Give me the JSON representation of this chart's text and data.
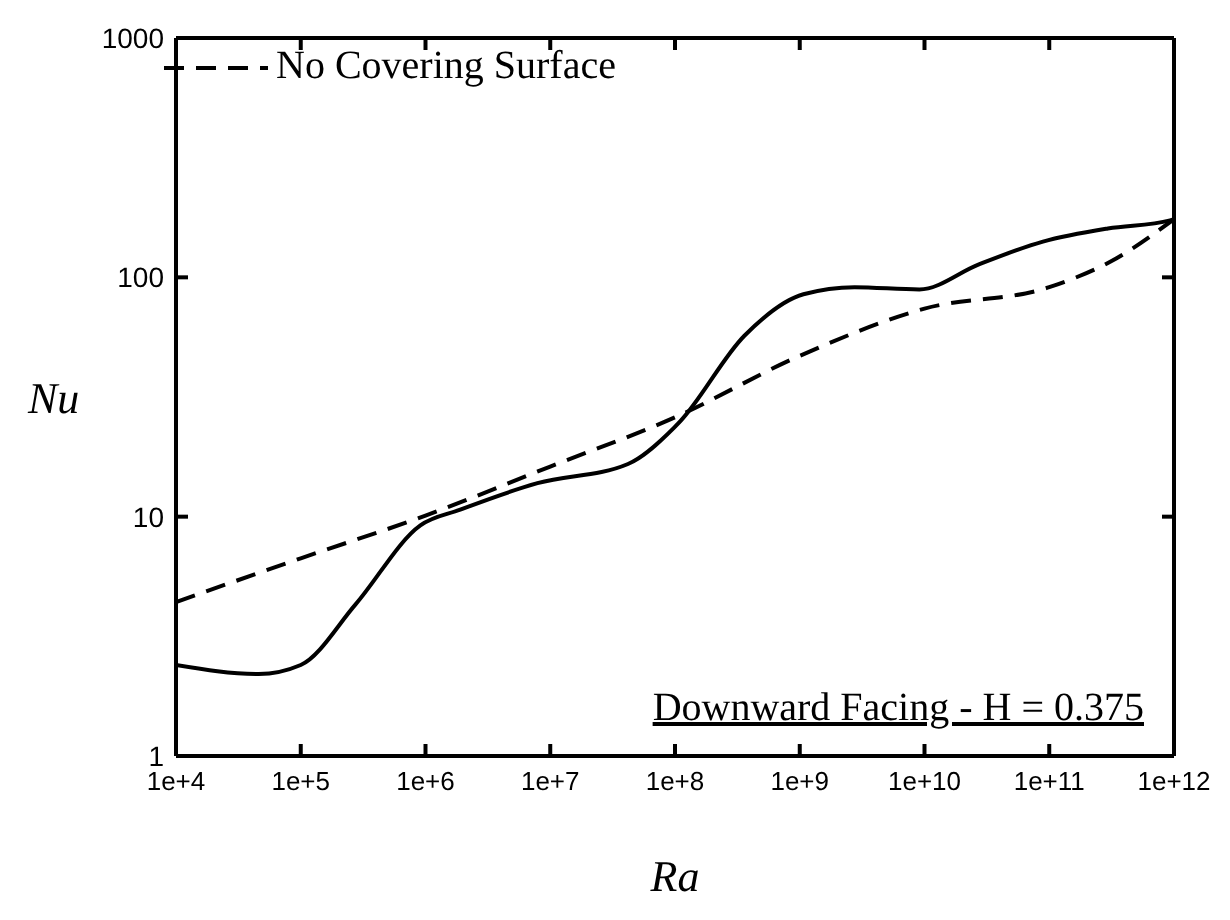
{
  "chart_data": {
    "type": "line",
    "xlabel": "Ra",
    "ylabel": "Nu",
    "log": "xy",
    "grid": false,
    "legend": "top left",
    "marker": "none",
    "xlim": [
      10000,
      1000000000000
    ],
    "ylim": [
      1,
      1000
    ],
    "xticks": [
      {
        "value": 10000,
        "label": "1e+4"
      },
      {
        "value": 100000,
        "label": "1e+5"
      },
      {
        "value": 1000000,
        "label": "1e+6"
      },
      {
        "value": 10000000,
        "label": "1e+7"
      },
      {
        "value": 100000000,
        "label": "1e+8"
      },
      {
        "value": 1000000000,
        "label": "1e+9"
      },
      {
        "value": 10000000000,
        "label": "1e+10"
      },
      {
        "value": 100000000000,
        "label": "1e+11"
      },
      {
        "value": 1000000000000,
        "label": "1e+12"
      }
    ],
    "yticks": [
      1,
      10,
      100,
      1000
    ],
    "series": [
      {
        "color": "#000000",
        "line_style": "solid",
        "x": [
          10000,
          46000,
          100000,
          275000,
          910000,
          1900000,
          7900000,
          42000000,
          98000000,
          110000000,
          360000000,
          1070000000,
          2750000000,
          9100000000,
          27000000000,
          89000000000,
          295000000000,
          930000000000,
          1000000000000
        ],
        "values": [
          2.4,
          2.2,
          2.4,
          4.3,
          9.2,
          10.7,
          13.8,
          16.6,
          23.5,
          25,
          57,
          85,
          91,
          89,
          113,
          141,
          160,
          173,
          175
        ]
      },
      {
        "name": "No Covering Surface",
        "color": "#000000",
        "line_style": "dashed",
        "x": [
          10000,
          100000,
          1000000,
          10000000,
          100000000,
          1000000000,
          10000000000,
          100000000000,
          316000000000,
          1000000000000
        ],
        "values": [
          4.4,
          6.7,
          10.1,
          16.2,
          26,
          47,
          74,
          91,
          117,
          175
        ]
      }
    ],
    "annotations": [
      "Downward Facing - H = 0.375"
    ]
  }
}
